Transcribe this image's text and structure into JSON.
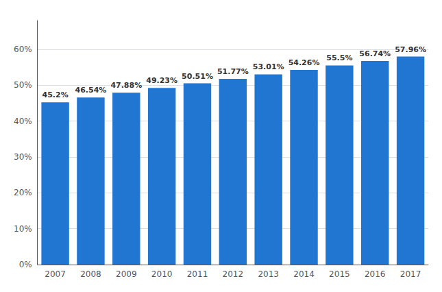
{
  "chart_data": {
    "type": "bar",
    "categories": [
      "2007",
      "2008",
      "2009",
      "2010",
      "2011",
      "2012",
      "2013",
      "2014",
      "2015",
      "2016",
      "2017"
    ],
    "values": [
      45.2,
      46.54,
      47.88,
      49.23,
      50.51,
      51.77,
      53.01,
      54.26,
      55.5,
      56.74,
      57.96
    ],
    "value_labels": [
      "45.2%",
      "46.54%",
      "47.88%",
      "49.23%",
      "50.51%",
      "51.77%",
      "53.01%",
      "54.26%",
      "55.5%",
      "56.74%",
      "57.96%"
    ],
    "data_labels": true,
    "color": "#2176d2",
    "ylim": [
      0,
      68
    ],
    "yticks": [
      {
        "value": 0,
        "label": "0%"
      },
      {
        "value": 10,
        "label": "10%"
      },
      {
        "value": 20,
        "label": "20%"
      },
      {
        "value": 30,
        "label": "30%"
      },
      {
        "value": 40,
        "label": "40%"
      },
      {
        "value": 50,
        "label": "50%"
      },
      {
        "value": 60,
        "label": "60%"
      }
    ],
    "grid": true
  }
}
